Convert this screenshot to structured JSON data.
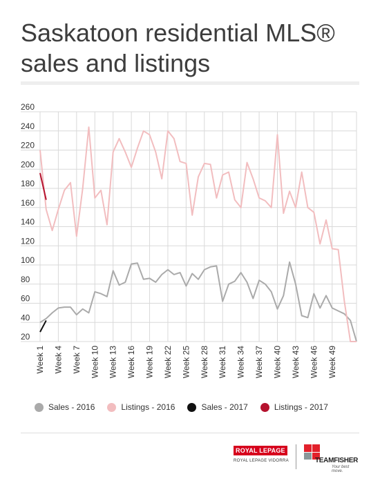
{
  "title": "Saskatoon residential MLS® sales and listings",
  "chart_data": {
    "type": "line",
    "ylim": [
      20,
      260
    ],
    "yticks": [
      20,
      40,
      60,
      80,
      100,
      120,
      140,
      160,
      180,
      200,
      220,
      240,
      260
    ],
    "x_tick_labels": [
      "Week 1",
      "Week 4",
      "Week 7",
      "Week 10",
      "Week 13",
      "Week 16",
      "Week 19",
      "Week 22",
      "Week 25",
      "Week 28",
      "Week 31",
      "Week 34",
      "Week 37",
      "Week 40",
      "Week 43",
      "Week 46",
      "Week 49"
    ],
    "x_tick_weeks": [
      1,
      4,
      7,
      10,
      13,
      16,
      19,
      22,
      25,
      28,
      31,
      34,
      37,
      40,
      43,
      46,
      49
    ],
    "weeks": 53,
    "grid": true,
    "legend_position": "bottom",
    "series": [
      {
        "name": "Sales - 2016",
        "color": "#aaaaaa",
        "values": [
          40,
          44,
          50,
          55,
          56,
          56,
          48,
          54,
          50,
          72,
          70,
          67,
          94,
          79,
          82,
          101,
          102,
          85,
          86,
          82,
          90,
          95,
          90,
          92,
          78,
          91,
          85,
          95,
          98,
          99,
          62,
          80,
          83,
          92,
          82,
          65,
          84,
          80,
          72,
          54,
          68,
          103,
          80,
          47,
          45,
          70,
          55,
          68,
          55,
          52,
          49,
          42,
          20
        ]
      },
      {
        "name": "Listings - 2016",
        "color": "#f2bdbf",
        "values": [
          220,
          158,
          136,
          158,
          178,
          186,
          130,
          180,
          244,
          170,
          178,
          142,
          218,
          232,
          218,
          202,
          222,
          240,
          236,
          218,
          190,
          240,
          232,
          208,
          206,
          152,
          192,
          206,
          205,
          170,
          194,
          197,
          168,
          160,
          207,
          190,
          170,
          167,
          160,
          236,
          154,
          177,
          160,
          197,
          160,
          155,
          122,
          147,
          117,
          116,
          62,
          20,
          20
        ]
      },
      {
        "name": "Sales - 2017",
        "color": "#111111",
        "values": [
          30,
          42
        ]
      },
      {
        "name": "Listings - 2017",
        "color": "#b5122e",
        "values": [
          196,
          168
        ]
      }
    ]
  },
  "legend": [
    {
      "label": "Sales - 2016",
      "color": "#aaaaaa"
    },
    {
      "label": "Listings - 2016",
      "color": "#f2bdbf"
    },
    {
      "label": "Sales - 2017",
      "color": "#111111"
    },
    {
      "label": "Listings - 2017",
      "color": "#b5122e"
    }
  ],
  "footer": {
    "royal_lepage_name": "ROYAL LEPAGE",
    "royal_lepage_sub": "ROYAL LEPAGE VIDORRA",
    "teamfisher_name": "TEAMFISHER",
    "teamfisher_tagline": "Your best move."
  }
}
